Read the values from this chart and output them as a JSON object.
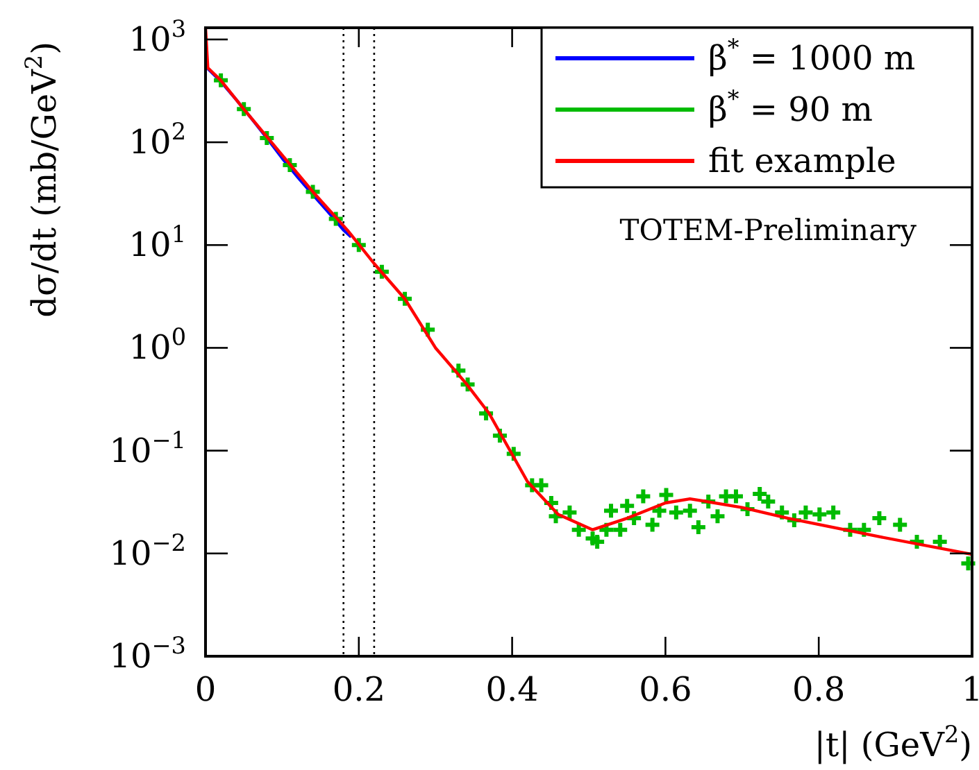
{
  "chart_data": {
    "type": "line",
    "xlabel": "|t|   (GeV$^{2}$)",
    "ylabel": "dσ/dt   (mb/GeV$^{2}$)",
    "log": "y",
    "xlim": [
      0,
      1
    ],
    "ylim": [
      0.001,
      1300
    ],
    "xticks": [
      0,
      0.2,
      0.4,
      0.6,
      0.8,
      1
    ],
    "yticks": [
      {
        "value": 0.001,
        "label": "10$^{−3}$"
      },
      {
        "value": 0.01,
        "label": "10$^{−2}$"
      },
      {
        "value": 0.1,
        "label": "10$^{−1}$"
      },
      {
        "value": 1,
        "label": "10$^{0}$"
      },
      {
        "value": 10,
        "label": "10$^{1}$"
      },
      {
        "value": 100,
        "label": "10$^{2}$"
      },
      {
        "value": 1000,
        "label": "10$^{3}$"
      }
    ],
    "legend": "top right",
    "grid": false,
    "ref_lines": [
      {
        "axis": "x",
        "value": 0.18,
        "line_style": "dotted",
        "color": "#000000"
      },
      {
        "axis": "x",
        "value": 0.22,
        "line_style": "dotted",
        "color": "#000000"
      }
    ],
    "annotations": [
      "TOTEM-Preliminary"
    ],
    "series": [
      {
        "name": "β$^{*}$ = 1000 m",
        "color": "#0000ff",
        "x": [
          0.003,
          0.02,
          0.04,
          0.06,
          0.08,
          0.1,
          0.12,
          0.14,
          0.16,
          0.18,
          0.19
        ],
        "values": [
          520,
          390,
          260,
          170,
          110,
          70,
          46,
          31,
          21,
          14,
          12
        ]
      },
      {
        "name": "β$^{*}$ = 90 m",
        "type": "scatter",
        "color": "#00bb00",
        "marker": "cross",
        "x": [
          0.02,
          0.05,
          0.08,
          0.11,
          0.14,
          0.17,
          0.2,
          0.23,
          0.26,
          0.29,
          0.33,
          0.342,
          0.366,
          0.384,
          0.402,
          0.426,
          0.438,
          0.451,
          0.457,
          0.475,
          0.487,
          0.505,
          0.511,
          0.523,
          0.529,
          0.541,
          0.55,
          0.559,
          0.571,
          0.583,
          0.592,
          0.601,
          0.614,
          0.632,
          0.643,
          0.656,
          0.668,
          0.679,
          0.692,
          0.707,
          0.723,
          0.734,
          0.752,
          0.768,
          0.783,
          0.801,
          0.819,
          0.841,
          0.859,
          0.879,
          0.906,
          0.928,
          0.958,
          0.995
        ],
        "values": [
          400,
          210,
          110,
          60,
          33,
          18,
          10,
          5.5,
          3,
          1.5,
          0.6,
          0.44,
          0.23,
          0.14,
          0.093,
          0.046,
          0.046,
          0.031,
          0.023,
          0.025,
          0.017,
          0.014,
          0.013,
          0.017,
          0.026,
          0.017,
          0.029,
          0.022,
          0.036,
          0.019,
          0.026,
          0.037,
          0.025,
          0.026,
          0.018,
          0.032,
          0.023,
          0.036,
          0.036,
          0.027,
          0.038,
          0.032,
          0.025,
          0.021,
          0.025,
          0.024,
          0.025,
          0.017,
          0.017,
          0.022,
          0.019,
          0.013,
          0.013,
          0.008
        ]
      },
      {
        "name": "fit example",
        "color": "#ff0000",
        "x": [
          0,
          0.003,
          0.02,
          0.05,
          0.1,
          0.14,
          0.185,
          0.22,
          0.26,
          0.3,
          0.34,
          0.37,
          0.42,
          0.46,
          0.505,
          0.55,
          0.6,
          0.632,
          0.7,
          0.76,
          0.88,
          1
        ],
        "values": [
          1300,
          530,
          400,
          210,
          75,
          33,
          14,
          6.6,
          3,
          1,
          0.45,
          0.23,
          0.05,
          0.024,
          0.017,
          0.022,
          0.031,
          0.034,
          0.028,
          0.022,
          0.0145,
          0.0098
        ]
      }
    ]
  }
}
